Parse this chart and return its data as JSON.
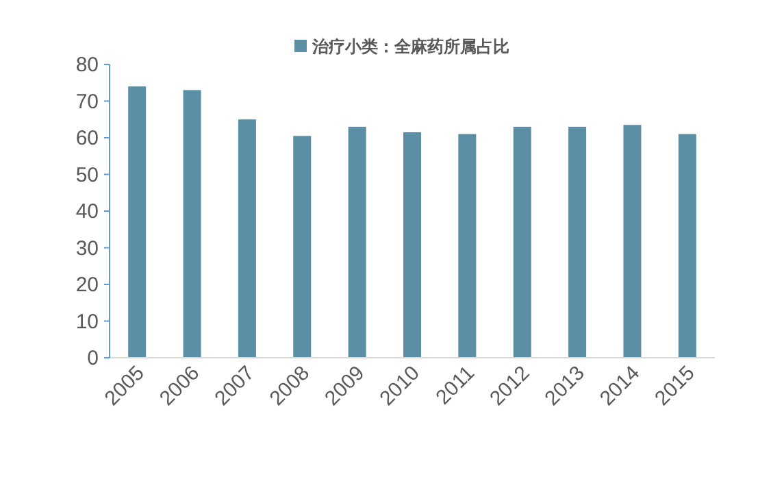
{
  "chart_data": {
    "type": "bar",
    "categories": [
      "2005",
      "2006",
      "2007",
      "2008",
      "2009",
      "2010",
      "2011",
      "2012",
      "2013",
      "2014",
      "2015"
    ],
    "series": [
      {
        "name": "治疗小类：全麻药所属占比",
        "color": "#5b8fa5",
        "values": [
          74,
          73,
          65,
          60.5,
          63,
          61.5,
          61,
          63,
          63,
          63.5,
          61
        ]
      }
    ],
    "ylim": [
      0,
      80
    ],
    "yticks": [
      0,
      10,
      20,
      30,
      40,
      50,
      60,
      70,
      80
    ],
    "legend": "top",
    "grid": false
  }
}
